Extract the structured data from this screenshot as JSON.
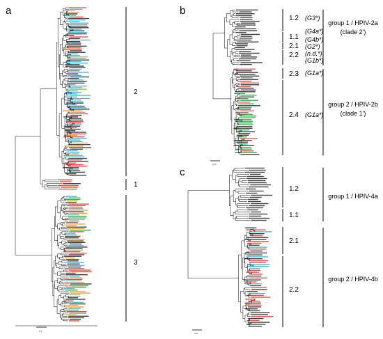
{
  "panels": [
    {
      "id": "a",
      "letter": "a",
      "clades": [
        "2",
        "1",
        "3"
      ],
      "scale": "0.1"
    },
    {
      "id": "b",
      "letter": "b",
      "clades": [
        "1.2",
        "1.1",
        "2.1",
        "2.2",
        "2.3",
        "2.4"
      ],
      "genotypes": [
        "(G3*)",
        "(G4a*)",
        "(G4b*)",
        "(G2*)",
        "(n.d.*)",
        "(G1b*)",
        "(G1a*)",
        "(G1a*)"
      ],
      "groups": [
        {
          "line1": "group 1 / HPIV-2a",
          "line2": "(clade 2')"
        },
        {
          "line1": "group 2 / HPIV-2b",
          "line2": "(clade 1')"
        }
      ],
      "scale": "0.01"
    },
    {
      "id": "c",
      "letter": "c",
      "clades": [
        "1.2",
        "1.1",
        "2.1",
        "2.2"
      ],
      "groups": [
        {
          "line1": "group 1 / HPIV-4a"
        },
        {
          "line1": "group 2 / HPIV-4b"
        }
      ],
      "scale": "0.01"
    }
  ],
  "colors": {
    "line": "#000000",
    "leaf_black": "#222222",
    "leaf_red": "#e8322a",
    "leaf_cyan": "#2ab0d4",
    "leaf_orange": "#e8951c",
    "leaf_green": "#1e9a3c"
  }
}
